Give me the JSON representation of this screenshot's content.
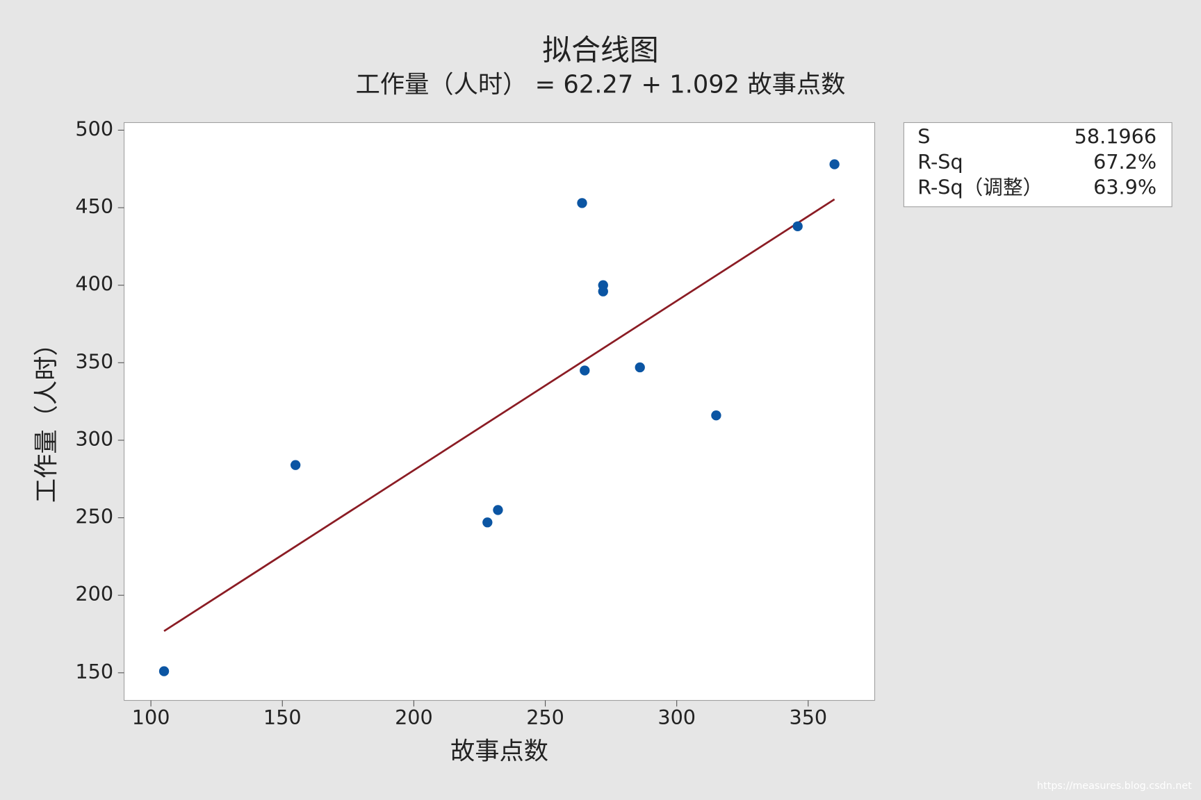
{
  "chart_data": {
    "type": "scatter",
    "title": "拟合线图",
    "subtitle": "工作量（人时） = 62.27 + 1.092 故事点数",
    "x_label": "故事点数",
    "y_label": "工作量（人时）",
    "x": [
      105,
      155,
      228,
      232,
      264,
      265,
      272,
      272,
      286,
      315,
      346,
      360
    ],
    "values": [
      151,
      284,
      247,
      255,
      453,
      345,
      400,
      396,
      347,
      316,
      438,
      478
    ],
    "color": "#0b55a3",
    "fit_line": {
      "x": [
        105,
        360
      ],
      "y": [
        176.9,
        455.4
      ],
      "color": "#8b1c24"
    },
    "xlim": [
      89.8,
      375.3
    ],
    "ylim": [
      132.2,
      504.9
    ],
    "xticks": [
      100,
      150,
      200,
      250,
      300,
      350
    ],
    "yticks": [
      150,
      200,
      250,
      300,
      350,
      400,
      450,
      500
    ],
    "stats": [
      [
        "S",
        "58.1966"
      ],
      [
        "R-Sq",
        "67.2%"
      ],
      [
        "R-Sq（调整）",
        "63.9%"
      ]
    ],
    "watermark": "https://measures.blog.csdn.net"
  }
}
